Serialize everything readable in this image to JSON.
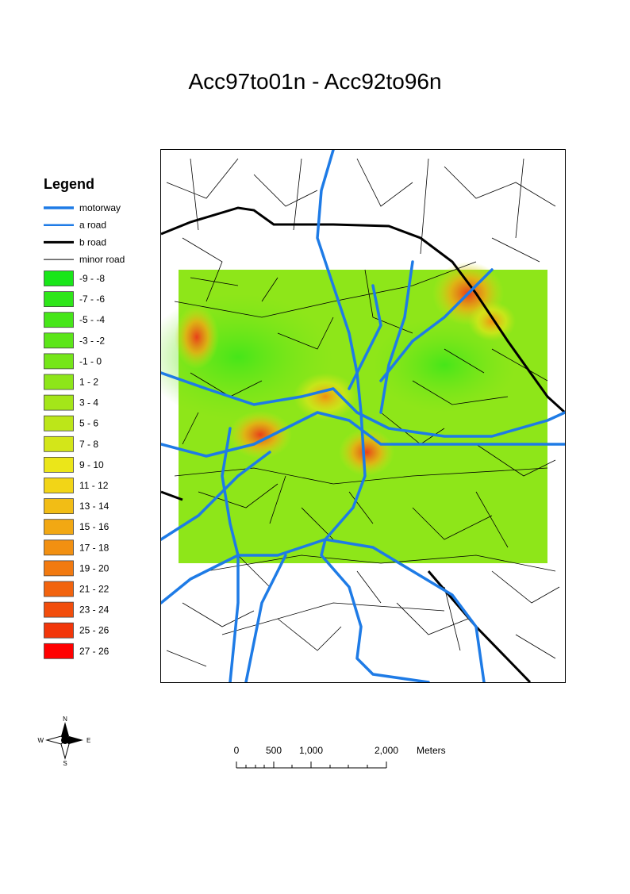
{
  "title": "Acc97to01n - Acc92to96n",
  "legend": {
    "title": "Legend",
    "roads": [
      {
        "label": "motorway",
        "color": "#1e7be6"
      },
      {
        "label": "a road",
        "color": "#1e7be6"
      },
      {
        "label": "b road",
        "color": "#000000"
      },
      {
        "label": "minor road",
        "color": "#000000"
      }
    ],
    "classes": [
      {
        "label": "-9 - -8",
        "color": "#19e619"
      },
      {
        "label": "-7 - -6",
        "color": "#2ee619"
      },
      {
        "label": "-5 - -4",
        "color": "#46e619"
      },
      {
        "label": "-3 - -2",
        "color": "#5ce619"
      },
      {
        "label": "-1 - 0",
        "color": "#75e619"
      },
      {
        "label": "1 - 2",
        "color": "#8de619"
      },
      {
        "label": "3 - 4",
        "color": "#a4e619"
      },
      {
        "label": "5 - 6",
        "color": "#bce619"
      },
      {
        "label": "7 - 8",
        "color": "#d3e619"
      },
      {
        "label": "9 - 10",
        "color": "#ebe619"
      },
      {
        "label": "11 - 12",
        "color": "#f2d517"
      },
      {
        "label": "13 - 14",
        "color": "#f2bd15"
      },
      {
        "label": "15 - 16",
        "color": "#f2a813"
      },
      {
        "label": "17 - 18",
        "color": "#f29011"
      },
      {
        "label": "19 - 20",
        "color": "#f27a10"
      },
      {
        "label": "21 - 22",
        "color": "#f2630e"
      },
      {
        "label": "23 - 24",
        "color": "#f24d0c"
      },
      {
        "label": "25 - 26",
        "color": "#f2360a"
      },
      {
        "label": "27 - 26",
        "color": "#ff0000"
      }
    ]
  },
  "compass": {
    "n": "N",
    "e": "E",
    "s": "S",
    "w": "W"
  },
  "scale_bar": {
    "labels": [
      "0",
      "500",
      "1,000",
      "2,000"
    ],
    "unit": "Meters"
  }
}
